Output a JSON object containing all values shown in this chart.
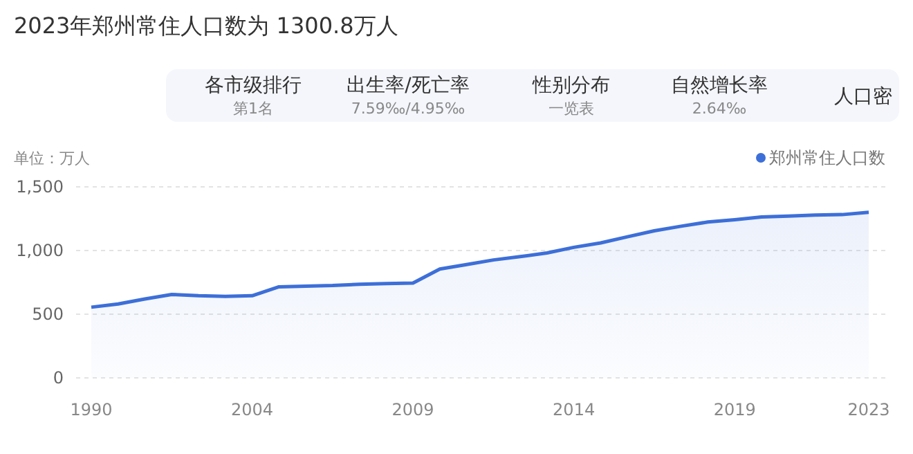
{
  "chart_data": {
    "type": "area",
    "title": "2023年郑州常住人口数为 1300.8万人",
    "ylabel": "单位：万人",
    "annotations": [
      "各市级排行",
      "第1名",
      "出生率/死亡率",
      "7.59‰/4.95‰",
      "性别分布",
      "一览表",
      "自然增长率",
      "2.64‰",
      "人口密"
    ],
    "categories": [
      "1990",
      null,
      null,
      null,
      null,
      null,
      "2004",
      null,
      null,
      null,
      null,
      null,
      "2009",
      null,
      null,
      null,
      null,
      null,
      "2014",
      null,
      null,
      null,
      null,
      null,
      "2019",
      null,
      null,
      null,
      null,
      "2023"
    ],
    "series": [
      {
        "name": "郑州常住人口数",
        "color": "#3d6fd8",
        "values": [
          555,
          580,
          620,
          655,
          645,
          640,
          645,
          715,
          720,
          725,
          735,
          740,
          745,
          855,
          890,
          926,
          952,
          981,
          1025,
          1060,
          1108,
          1155,
          1191,
          1224,
          1242,
          1264,
          1271,
          1278,
          1282,
          1300.8
        ]
      }
    ],
    "ylim": [
      0,
      1500
    ],
    "yticks": [
      0,
      500,
      {
        "value": 1000,
        "label": "1,000"
      },
      {
        "value": 1500,
        "label": "1,500"
      }
    ],
    "grid": "y",
    "legend": "top right"
  }
}
